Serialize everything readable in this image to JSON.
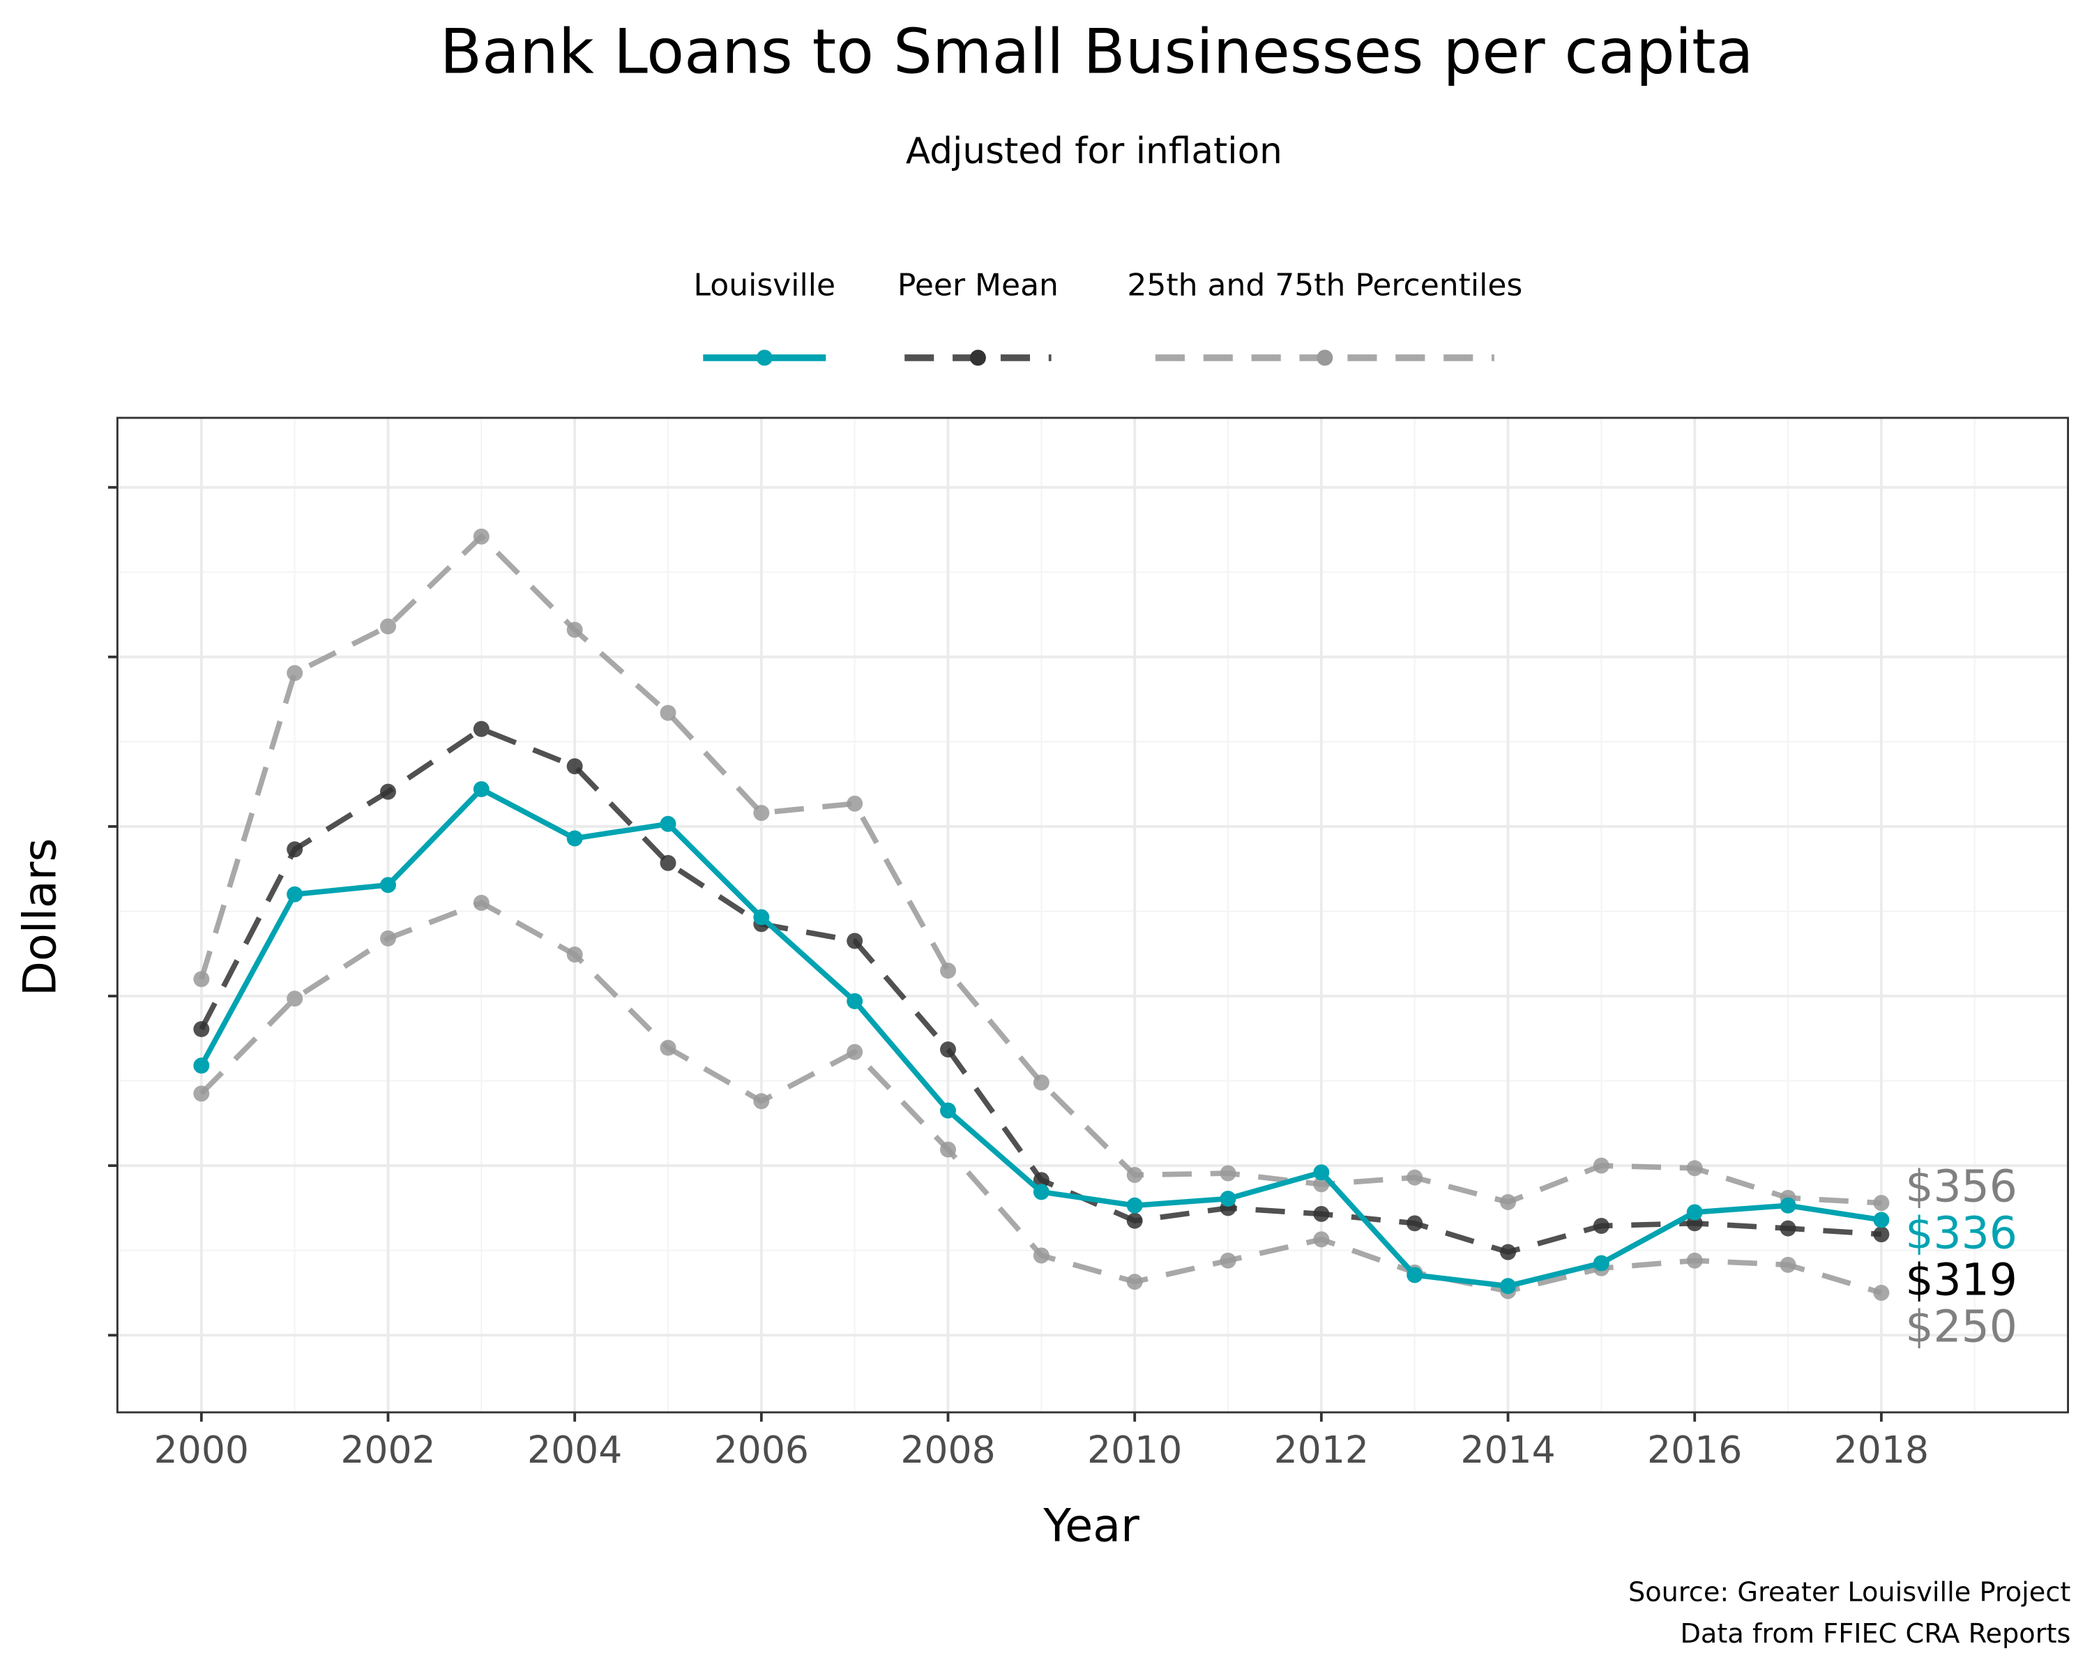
{
  "chart_data": {
    "type": "line",
    "title": "Bank Loans to Small Businesses per capita",
    "subtitle": "Adjusted for inflation",
    "x_label": "Year",
    "y_label": "Dollars",
    "caption": [
      "Source: Greater Louisville Project",
      "Data from FFIEC CRA Reports"
    ],
    "x": [
      2000,
      2001,
      2002,
      2003,
      2004,
      2005,
      2006,
      2007,
      2008,
      2009,
      2010,
      2011,
      2012,
      2013,
      2014,
      2015,
      2016,
      2017,
      2018
    ],
    "xlim": [
      1999.1,
      2020
    ],
    "xticks": [
      2000,
      2002,
      2004,
      2006,
      2008,
      2010,
      2012,
      2014,
      2016,
      2018
    ],
    "ylim": [
      109,
      1282
    ],
    "yticks": [
      200,
      400,
      600,
      800,
      1000,
      1200
    ],
    "grid": true,
    "legend": "top",
    "series": [
      {
        "name": "Louisville",
        "color": "#00a3b1",
        "dashed": false,
        "values": [
          518,
          720,
          731,
          844,
          786,
          803,
          693,
          594,
          465,
          369,
          353,
          361,
          392,
          271,
          258,
          285,
          345,
          353,
          336
        ],
        "end_label": "$336"
      },
      {
        "name": "Peer Mean",
        "color": "#333333",
        "dashed": true,
        "values": [
          561,
          773,
          841,
          915,
          871,
          757,
          685,
          665,
          537,
          383,
          335,
          350,
          343,
          332,
          298,
          329,
          332,
          326,
          319
        ],
        "end_label": "$319",
        "label_color": "#000000"
      },
      {
        "name": "25th and 75th Percentiles",
        "color": "#999999",
        "dashed": true,
        "values": [
          620,
          981,
          1036,
          1142,
          1032,
          934,
          816,
          827,
          630,
          498,
          389,
          391,
          378,
          386,
          357,
          400,
          397,
          362,
          356
        ],
        "end_label": "$356",
        "label_color": "#808080",
        "lower_values": [
          485,
          597,
          668,
          710,
          649,
          539,
          476,
          534,
          419,
          294,
          263,
          288,
          313,
          274,
          252,
          279,
          288,
          283,
          250
        ],
        "lower_end_label": "$250"
      }
    ]
  }
}
